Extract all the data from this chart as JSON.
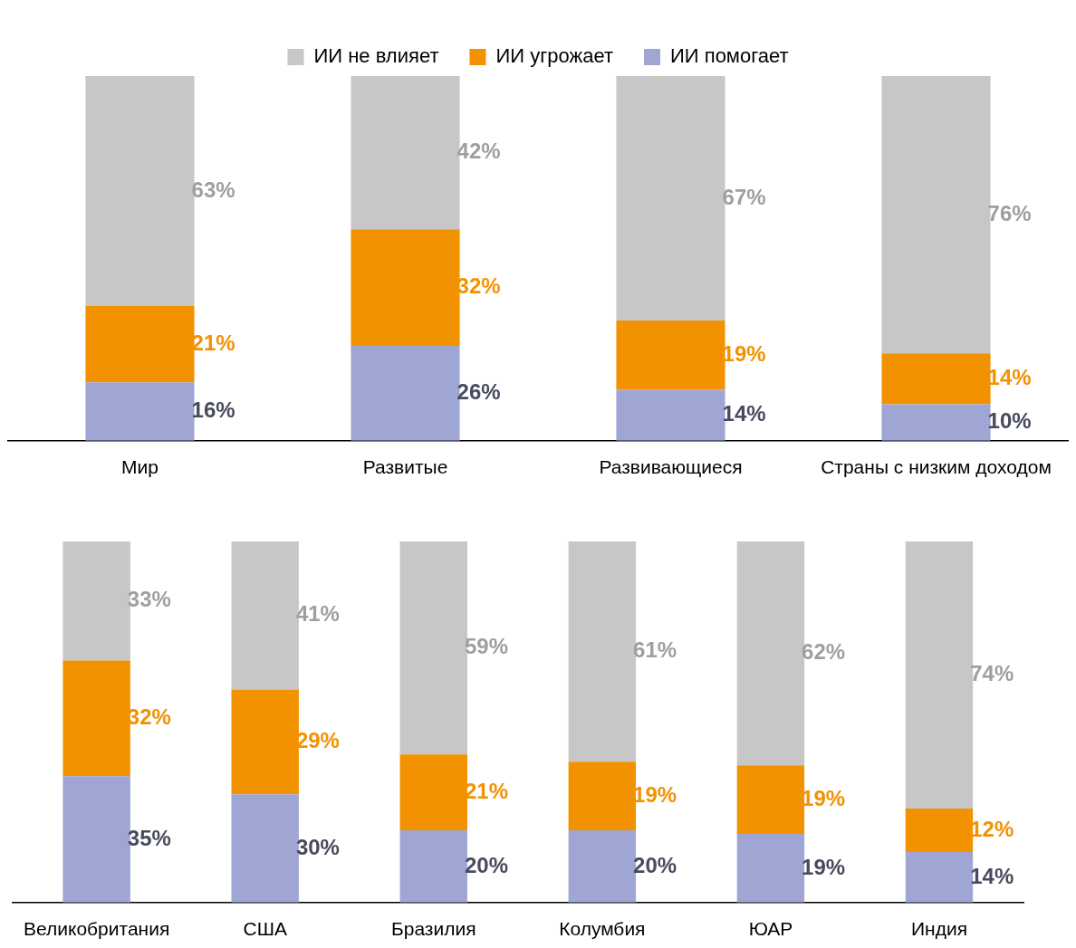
{
  "chart_data": [
    {
      "type": "bar",
      "stacked": true,
      "legend": "top",
      "tick_labels": "x",
      "categories": [
        "Мир",
        "Развитые",
        "Развивающиеся",
        "Страны с низким доходом"
      ],
      "series": [
        {
          "name": "ИИ помогает",
          "color": "#a0a6d4",
          "values": [
            16,
            26,
            14,
            10
          ],
          "value_labels": [
            "16%",
            "26%",
            "14%",
            "10%"
          ]
        },
        {
          "name": "ИИ угрожает",
          "color": "#f39200",
          "values": [
            21,
            32,
            19,
            14
          ],
          "value_labels": [
            "21%",
            "32%",
            "19%",
            "14%"
          ]
        },
        {
          "name": "ИИ не влияет",
          "color": "#c6c7c6",
          "values": [
            63,
            42,
            67,
            76
          ],
          "value_labels": [
            "63%",
            "42%",
            "67%",
            "76%"
          ]
        }
      ]
    },
    {
      "type": "bar",
      "stacked": true,
      "tick_labels": "x",
      "categories": [
        "Великобритания",
        "США",
        "Бразилия",
        "Колумбия",
        "ЮАР",
        "Индия"
      ],
      "series": [
        {
          "color": "#a0a6d4",
          "values": [
            35,
            30,
            20,
            20,
            19,
            14
          ],
          "value_labels": [
            "35%",
            "30%",
            "20%",
            "20%",
            "19%",
            "14%"
          ]
        },
        {
          "color": "#f39200",
          "values": [
            32,
            29,
            21,
            19,
            19,
            12
          ],
          "value_labels": [
            "32%",
            "29%",
            "21%",
            "19%",
            "19%",
            "12%"
          ]
        },
        {
          "color": "#c6c7c6",
          "values": [
            33,
            41,
            59,
            61,
            62,
            74
          ],
          "value_labels": [
            "33%",
            "41%",
            "59%",
            "61%",
            "62%",
            "74%"
          ]
        }
      ]
    }
  ]
}
